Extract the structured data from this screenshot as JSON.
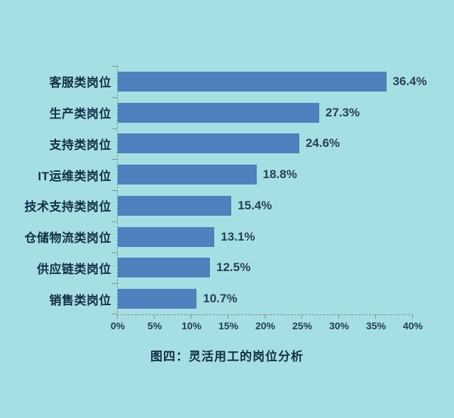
{
  "chart_data": {
    "type": "bar",
    "orientation": "horizontal",
    "title": "图四：灵活用工的岗位分析",
    "categories": [
      "客服类岗位",
      "生产类岗位",
      "支持类岗位",
      "IT运维类岗位",
      "技术支持类岗位",
      "仓储物流类岗位",
      "供应链类岗位",
      "销售类岗位"
    ],
    "values": [
      36.4,
      27.3,
      24.6,
      18.8,
      15.4,
      13.1,
      12.5,
      10.7
    ],
    "value_labels": [
      "36.4%",
      "27.3%",
      "24.6%",
      "18.8%",
      "15.4%",
      "13.1%",
      "12.5%",
      "10.7%"
    ],
    "x_ticks": [
      "0%",
      "5%",
      "10%",
      "15%",
      "20%",
      "25%",
      "30%",
      "35%",
      "40%"
    ],
    "xlim": [
      0,
      40
    ],
    "grid": false,
    "legend": "none",
    "bar_color": "#4e81bd",
    "background_color": "#a6dfe3",
    "axis_color": "#8a8a8a",
    "text_color": "#132e47"
  }
}
